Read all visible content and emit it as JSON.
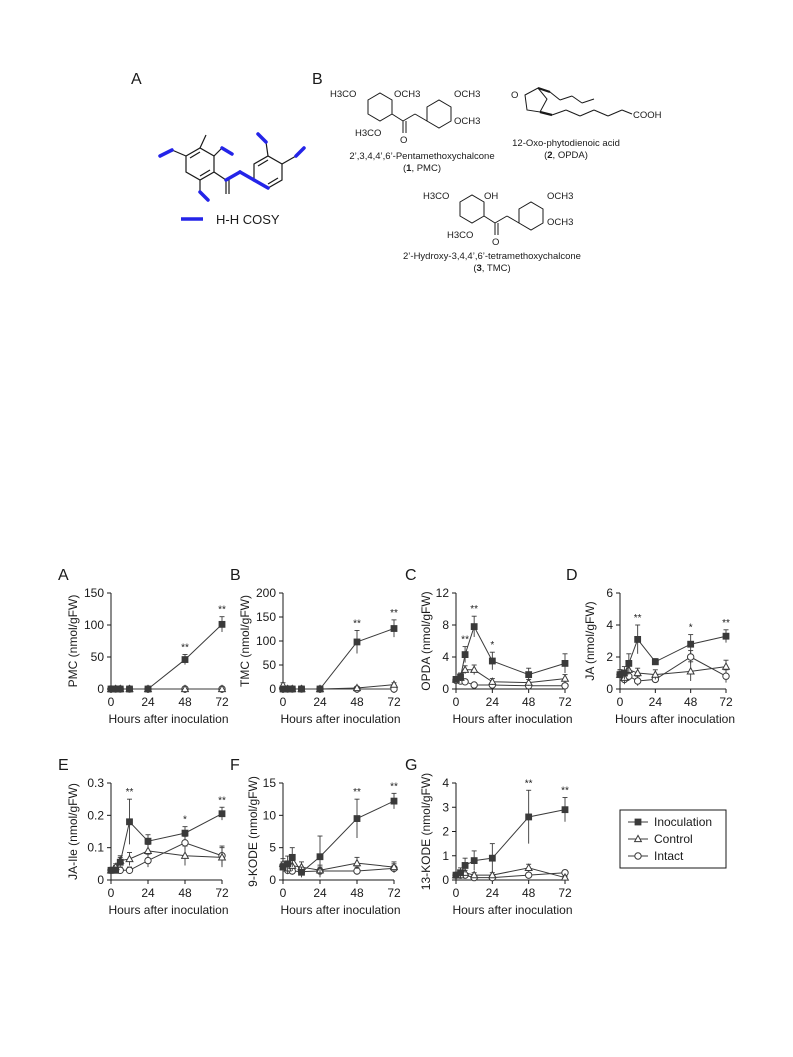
{
  "structures": {
    "panel_a_letter": "A",
    "panel_b_letter": "B",
    "cosy_label": "H-H COSY",
    "compounds": [
      {
        "name": "2’,3,4,4’,6’-Pentamethoxychalcone",
        "id": "1",
        "abbr": "PMC"
      },
      {
        "name": "12-Oxo-phytodienoic acid",
        "id": "2",
        "abbr": "OPDA"
      },
      {
        "name": "2’-Hydroxy-3,4,4’,6’-tetramethoxychalcone",
        "id": "3",
        "abbr": "TMC"
      }
    ],
    "atom_labels": {
      "h3co": "H3CO",
      "och3": "OCH3",
      "h3co_b": "H3CO",
      "oh": "OH",
      "cooh": "COOH",
      "o": "O"
    }
  },
  "xlabel": "Hours after inoculation",
  "legend": [
    {
      "name": "Inoculation",
      "marker": "square-filled"
    },
    {
      "name": "Control",
      "marker": "triangle-open"
    },
    {
      "name": "Intact",
      "marker": "circle-open"
    }
  ],
  "colors": {
    "series": "#3a3a3a",
    "cosy": "#2424e8"
  },
  "chart_data": [
    {
      "panel": "A",
      "type": "line",
      "ylabel": "PMC (nmol/gFW)",
      "xticks": [
        0,
        24,
        48,
        72
      ],
      "yticks": [
        0,
        50,
        100,
        150
      ],
      "ylim": [
        0,
        150
      ],
      "xlim": [
        0,
        72
      ],
      "series": [
        {
          "name": "Inoculation",
          "x": [
            0,
            3,
            6,
            12,
            24,
            48,
            72
          ],
          "values": [
            0,
            0,
            0,
            0,
            0,
            46,
            101
          ],
          "err": [
            0,
            0,
            0,
            0,
            0,
            8,
            12
          ]
        },
        {
          "name": "Control",
          "x": [
            0,
            3,
            6,
            12,
            24,
            48,
            72
          ],
          "values": [
            0,
            0,
            0,
            0,
            0,
            0,
            0
          ],
          "err": [
            0,
            0,
            0,
            0,
            0,
            0,
            0
          ]
        },
        {
          "name": "Intact",
          "x": [
            0,
            3,
            6,
            12,
            24,
            48,
            72
          ],
          "values": [
            0,
            0,
            0,
            0,
            0,
            0,
            0
          ],
          "err": [
            0,
            0,
            0,
            0,
            0,
            0,
            0
          ]
        }
      ],
      "significance": [
        {
          "x": 48,
          "label": "**"
        },
        {
          "x": 72,
          "label": "**"
        }
      ]
    },
    {
      "panel": "B",
      "type": "line",
      "ylabel": "TMC (nmol/gFW)",
      "xticks": [
        0,
        24,
        48,
        72
      ],
      "yticks": [
        0,
        50,
        100,
        150,
        200
      ],
      "ylim": [
        0,
        200
      ],
      "xlim": [
        0,
        72
      ],
      "series": [
        {
          "name": "Inoculation",
          "x": [
            0,
            3,
            6,
            12,
            24,
            48,
            72
          ],
          "values": [
            0,
            0,
            0,
            0,
            0,
            98,
            126
          ],
          "err": [
            0,
            0,
            0,
            0,
            0,
            24,
            18
          ]
        },
        {
          "name": "Control",
          "x": [
            0,
            3,
            6,
            12,
            24,
            48,
            72
          ],
          "values": [
            8,
            0,
            0,
            0,
            0,
            2,
            9
          ],
          "err": [
            5,
            0,
            0,
            0,
            0,
            2,
            4
          ]
        },
        {
          "name": "Intact",
          "x": [
            0,
            3,
            6,
            12,
            24,
            48,
            72
          ],
          "values": [
            0,
            0,
            0,
            0,
            0,
            0,
            0
          ],
          "err": [
            0,
            0,
            0,
            0,
            0,
            0,
            0
          ]
        }
      ],
      "significance": [
        {
          "x": 48,
          "label": "**"
        },
        {
          "x": 72,
          "label": "**"
        }
      ]
    },
    {
      "panel": "C",
      "type": "line",
      "ylabel": "OPDA (nmol/gFW)",
      "xticks": [
        0,
        24,
        48,
        72
      ],
      "yticks": [
        0,
        4,
        8,
        12
      ],
      "ylim": [
        0,
        12
      ],
      "xlim": [
        0,
        72
      ],
      "series": [
        {
          "name": "Inoculation",
          "x": [
            0,
            3,
            6,
            12,
            24,
            48,
            72
          ],
          "values": [
            1.2,
            1.5,
            4.3,
            7.8,
            3.5,
            1.8,
            3.2
          ],
          "err": [
            0.3,
            0.5,
            1.0,
            1.3,
            1.1,
            0.8,
            1.2
          ]
        },
        {
          "name": "Control",
          "x": [
            0,
            3,
            6,
            12,
            24,
            48,
            72
          ],
          "values": [
            1.2,
            1.4,
            2.4,
            2.4,
            0.9,
            0.8,
            1.3
          ],
          "err": [
            0.3,
            0.4,
            0.5,
            0.6,
            0.4,
            0.4,
            0.5
          ]
        },
        {
          "name": "Intact",
          "x": [
            0,
            3,
            6,
            12,
            24,
            48,
            72
          ],
          "values": [
            1.1,
            1.0,
            0.9,
            0.5,
            0.5,
            0.4,
            0.4
          ],
          "err": [
            0.2,
            0.3,
            0.3,
            0.2,
            0.2,
            0.2,
            0.2
          ]
        }
      ],
      "significance": [
        {
          "x": 6,
          "label": "**"
        },
        {
          "x": 12,
          "label": "**"
        },
        {
          "x": 24,
          "label": "*"
        }
      ]
    },
    {
      "panel": "D",
      "type": "line",
      "ylabel": "JA (nmol/gFW)",
      "xticks": [
        0,
        24,
        48,
        72
      ],
      "yticks": [
        0,
        2,
        4,
        6
      ],
      "ylim": [
        0,
        6
      ],
      "xlim": [
        0,
        72
      ],
      "series": [
        {
          "name": "Inoculation",
          "x": [
            0,
            3,
            6,
            12,
            24,
            48,
            72
          ],
          "values": [
            0.9,
            1.0,
            1.6,
            3.1,
            1.7,
            2.8,
            3.3
          ],
          "err": [
            0.3,
            0.4,
            0.6,
            0.9,
            0.2,
            0.6,
            0.4
          ]
        },
        {
          "name": "Control",
          "x": [
            0,
            3,
            6,
            12,
            24,
            48,
            72
          ],
          "values": [
            0.9,
            0.7,
            1.2,
            1.0,
            0.9,
            1.1,
            1.4
          ],
          "err": [
            0.3,
            0.3,
            0.3,
            0.3,
            0.3,
            0.6,
            0.4
          ]
        },
        {
          "name": "Intact",
          "x": [
            0,
            3,
            6,
            12,
            24,
            48,
            72
          ],
          "values": [
            0.9,
            0.6,
            0.8,
            0.5,
            0.6,
            2.0,
            0.8
          ],
          "err": [
            0.3,
            0.3,
            0.3,
            0.3,
            0.2,
            0.4,
            0.4
          ]
        }
      ],
      "significance": [
        {
          "x": 12,
          "label": "**"
        },
        {
          "x": 48,
          "label": "*"
        },
        {
          "x": 72,
          "label": "**"
        }
      ]
    },
    {
      "panel": "E",
      "type": "line",
      "ylabel": "JA-Ile (nmol/gFW)",
      "xticks": [
        0,
        24,
        48,
        72
      ],
      "yticks": [
        0,
        0.1,
        0.2,
        0.3
      ],
      "ylim": [
        0,
        0.3
      ],
      "xlim": [
        0,
        72
      ],
      "series": [
        {
          "name": "Inoculation",
          "x": [
            0,
            3,
            6,
            12,
            24,
            48,
            72
          ],
          "values": [
            0.03,
            0.03,
            0.055,
            0.18,
            0.12,
            0.145,
            0.205
          ],
          "err": [
            0.005,
            0.01,
            0.015,
            0.07,
            0.02,
            0.02,
            0.02
          ]
        },
        {
          "name": "Control",
          "x": [
            0,
            3,
            6,
            12,
            24,
            48,
            72
          ],
          "values": [
            0.03,
            0.04,
            0.06,
            0.065,
            0.09,
            0.075,
            0.07
          ],
          "err": [
            0.005,
            0.01,
            0.015,
            0.02,
            0.02,
            0.03,
            0.03
          ]
        },
        {
          "name": "Intact",
          "x": [
            0,
            3,
            6,
            12,
            24,
            48,
            72
          ],
          "values": [
            0.03,
            0.035,
            0.03,
            0.03,
            0.06,
            0.115,
            0.075
          ],
          "err": [
            0.005,
            0.01,
            0.01,
            0.01,
            0.02,
            0.02,
            0.03
          ]
        }
      ],
      "significance": [
        {
          "x": 12,
          "label": "**"
        },
        {
          "x": 48,
          "label": "*"
        },
        {
          "x": 72,
          "label": "**"
        }
      ]
    },
    {
      "panel": "F",
      "type": "line",
      "ylabel": "9-KODE (nmol/gFW)",
      "xticks": [
        0,
        24,
        48,
        72
      ],
      "yticks": [
        0,
        5,
        10,
        15
      ],
      "ylim": [
        0,
        15
      ],
      "xlim": [
        0,
        72
      ],
      "series": [
        {
          "name": "Inoculation",
          "x": [
            0,
            3,
            6,
            12,
            24,
            48,
            72
          ],
          "values": [
            2.0,
            2.5,
            3.5,
            1.2,
            3.6,
            9.5,
            12.2
          ],
          "err": [
            0.6,
            1.2,
            1.5,
            0.8,
            3.2,
            3.0,
            1.2
          ]
        },
        {
          "name": "Control",
          "x": [
            0,
            3,
            6,
            12,
            24,
            48,
            72
          ],
          "values": [
            2.5,
            1.8,
            2.2,
            2.0,
            1.5,
            2.6,
            2.0
          ],
          "err": [
            0.8,
            0.8,
            0.8,
            0.8,
            0.8,
            0.9,
            0.8
          ]
        },
        {
          "name": "Intact",
          "x": [
            0,
            3,
            6,
            12,
            24,
            48,
            72
          ],
          "values": [
            2.2,
            1.5,
            1.4,
            1.3,
            1.4,
            1.4,
            1.8
          ],
          "err": [
            0.6,
            0.6,
            0.6,
            0.6,
            0.6,
            0.6,
            0.7
          ]
        }
      ],
      "significance": [
        {
          "x": 48,
          "label": "**"
        },
        {
          "x": 72,
          "label": "**"
        }
      ]
    },
    {
      "panel": "G",
      "type": "line",
      "ylabel": "13-KODE (nmol/gFW)",
      "xticks": [
        0,
        24,
        48,
        72
      ],
      "yticks": [
        0,
        1,
        2,
        3,
        4
      ],
      "ylim": [
        0,
        4
      ],
      "xlim": [
        0,
        72
      ],
      "series": [
        {
          "name": "Inoculation",
          "x": [
            0,
            3,
            6,
            12,
            24,
            48,
            72
          ],
          "values": [
            0.2,
            0.3,
            0.6,
            0.8,
            0.9,
            2.6,
            2.9
          ],
          "err": [
            0.1,
            0.2,
            0.3,
            0.4,
            0.6,
            1.1,
            0.5
          ]
        },
        {
          "name": "Control",
          "x": [
            0,
            3,
            6,
            12,
            24,
            48,
            72
          ],
          "values": [
            0.2,
            0.2,
            0.3,
            0.2,
            0.2,
            0.5,
            0.1
          ],
          "err": [
            0.05,
            0.1,
            0.1,
            0.1,
            0.1,
            0.15,
            0.05
          ]
        },
        {
          "name": "Intact",
          "x": [
            0,
            3,
            6,
            12,
            24,
            48,
            72
          ],
          "values": [
            0.2,
            0.2,
            0.2,
            0.1,
            0.1,
            0.2,
            0.3
          ],
          "err": [
            0.05,
            0.05,
            0.05,
            0.05,
            0.05,
            0.05,
            0.1
          ]
        }
      ],
      "significance": [
        {
          "x": 48,
          "label": "**"
        },
        {
          "x": 72,
          "label": "**"
        }
      ]
    }
  ]
}
